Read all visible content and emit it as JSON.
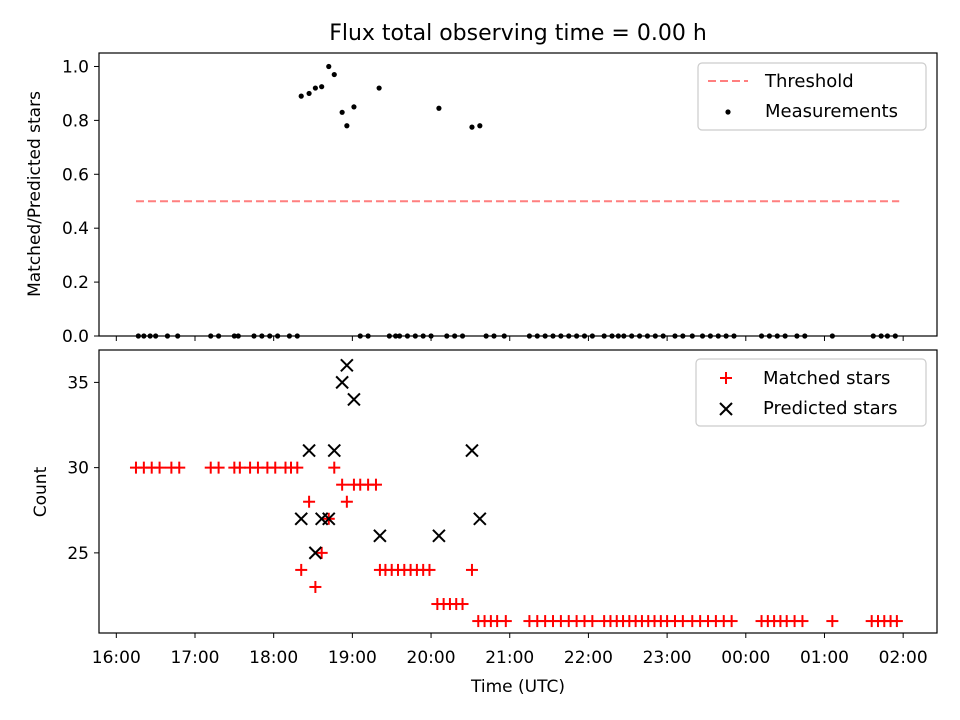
{
  "figure_title": "Flux total observing time = 0.00 h",
  "colors": {
    "threshold": "#ff7f7f",
    "matched": "#ff0000",
    "predicted": "#000000",
    "measurement": "#000000"
  },
  "chart_data": [
    {
      "type": "scatter",
      "panel": "top",
      "ylabel": "Matched/Predicted stars",
      "xlim": [
        15.78,
        26.43
      ],
      "ylim": [
        0,
        1.05
      ],
      "xticks": [
        16,
        17,
        18,
        19,
        20,
        21,
        22,
        23,
        24,
        25,
        26
      ],
      "yticks": [
        0.0,
        0.2,
        0.4,
        0.6,
        0.8,
        1.0
      ],
      "ytick_labels": [
        "0.0",
        "0.2",
        "0.4",
        "0.6",
        "0.8",
        "1.0"
      ],
      "legend": {
        "position": "top-right",
        "entries": [
          "Threshold",
          "Measurements"
        ]
      },
      "threshold": {
        "name": "Threshold",
        "x": [
          16.25,
          25.95
        ],
        "y": 0.5
      },
      "measurements": {
        "name": "Measurements",
        "x": [
          16.28,
          16.35,
          16.43,
          16.5,
          16.65,
          16.78,
          17.2,
          17.3,
          17.5,
          17.55,
          17.75,
          17.85,
          17.95,
          18.05,
          18.2,
          18.3,
          18.35,
          18.45,
          18.53,
          18.61,
          18.7,
          18.77,
          18.87,
          18.93,
          19.02,
          19.1,
          19.2,
          19.34,
          19.47,
          19.55,
          19.6,
          19.7,
          19.8,
          19.9,
          20.0,
          20.1,
          20.2,
          20.3,
          20.4,
          20.52,
          20.62,
          20.7,
          20.8,
          20.93,
          21.25,
          21.35,
          21.45,
          21.55,
          21.65,
          21.75,
          21.85,
          21.95,
          22.05,
          22.2,
          22.3,
          22.38,
          22.45,
          22.55,
          22.65,
          22.75,
          22.85,
          22.95,
          23.1,
          23.2,
          23.32,
          23.45,
          23.55,
          23.65,
          23.75,
          23.85,
          24.2,
          24.3,
          24.4,
          24.5,
          24.65,
          24.75,
          25.1,
          25.62,
          25.72,
          25.8,
          25.9
        ],
        "y": [
          0,
          0,
          0,
          0,
          0,
          0,
          0,
          0,
          0,
          0,
          0,
          0,
          0,
          0,
          0,
          0,
          0.89,
          0.9,
          0.92,
          0.925,
          1.0,
          0.97,
          0.83,
          0.78,
          0.85,
          0,
          0,
          0.92,
          0,
          0,
          0,
          0,
          0,
          0,
          0,
          0.845,
          0,
          0,
          0,
          0.775,
          0.78,
          0,
          0,
          0,
          0,
          0,
          0,
          0,
          0,
          0,
          0,
          0,
          0,
          0,
          0,
          0,
          0,
          0,
          0,
          0,
          0,
          0,
          0,
          0,
          0,
          0,
          0,
          0,
          0,
          0,
          0,
          0,
          0,
          0,
          0,
          0,
          0,
          0,
          0,
          0,
          0
        ]
      }
    },
    {
      "type": "scatter",
      "panel": "bottom",
      "xlabel": "Time (UTC)",
      "ylabel": "Count",
      "xlim": [
        15.78,
        26.43
      ],
      "ylim": [
        20.3,
        36.9
      ],
      "xticks": [
        16,
        17,
        18,
        19,
        20,
        21,
        22,
        23,
        24,
        25,
        26
      ],
      "xtick_labels": [
        "16:00",
        "17:00",
        "18:00",
        "19:00",
        "20:00",
        "21:00",
        "22:00",
        "23:00",
        "00:00",
        "01:00",
        "02:00"
      ],
      "yticks": [
        25,
        30,
        35
      ],
      "ytick_labels": [
        "25",
        "30",
        "35"
      ],
      "legend": {
        "position": "top-right",
        "entries": [
          "Matched stars",
          "Predicted stars"
        ]
      },
      "matched": {
        "name": "Matched stars",
        "x": [
          16.25,
          16.35,
          16.45,
          16.55,
          16.7,
          16.8,
          17.2,
          17.3,
          17.5,
          17.57,
          17.7,
          17.8,
          17.92,
          18.02,
          18.15,
          18.22,
          18.3,
          18.35,
          18.45,
          18.53,
          18.61,
          18.7,
          18.77,
          18.87,
          18.93,
          19.02,
          19.1,
          19.2,
          19.3,
          19.35,
          19.42,
          19.5,
          19.58,
          19.66,
          19.74,
          19.82,
          19.9,
          19.98,
          20.08,
          20.16,
          20.24,
          20.32,
          20.4,
          20.52,
          20.6,
          20.68,
          20.76,
          20.84,
          20.95,
          21.25,
          21.35,
          21.45,
          21.55,
          21.65,
          21.75,
          21.85,
          21.95,
          22.05,
          22.2,
          22.28,
          22.36,
          22.44,
          22.52,
          22.6,
          22.68,
          22.76,
          22.84,
          22.92,
          23.0,
          23.1,
          23.2,
          23.32,
          23.42,
          23.52,
          23.62,
          23.72,
          23.82,
          24.2,
          24.28,
          24.36,
          24.44,
          24.52,
          24.62,
          24.72,
          25.1,
          25.6,
          25.68,
          25.76,
          25.84,
          25.92
        ],
        "y": [
          30,
          30,
          30,
          30,
          30,
          30,
          30,
          30,
          30,
          30,
          30,
          30,
          30,
          30,
          30,
          30,
          30,
          24,
          28,
          23,
          25,
          27,
          30,
          29,
          28,
          29,
          29,
          29,
          29,
          24,
          24,
          24,
          24,
          24,
          24,
          24,
          24,
          24,
          22,
          22,
          22,
          22,
          22,
          24,
          21,
          21,
          21,
          21,
          21,
          21,
          21,
          21,
          21,
          21,
          21,
          21,
          21,
          21,
          21,
          21,
          21,
          21,
          21,
          21,
          21,
          21,
          21,
          21,
          21,
          21,
          21,
          21,
          21,
          21,
          21,
          21,
          21,
          21,
          21,
          21,
          21,
          21,
          21,
          21,
          21,
          21,
          21,
          21,
          21,
          21
        ]
      },
      "predicted": {
        "name": "Predicted stars",
        "x": [
          18.35,
          18.45,
          18.53,
          18.61,
          18.7,
          18.77,
          18.87,
          18.93,
          19.02,
          19.35,
          20.1,
          20.52,
          20.62
        ],
        "y": [
          27,
          31,
          25,
          27,
          27,
          31,
          35,
          36,
          34,
          26,
          26,
          31,
          27
        ]
      }
    }
  ]
}
